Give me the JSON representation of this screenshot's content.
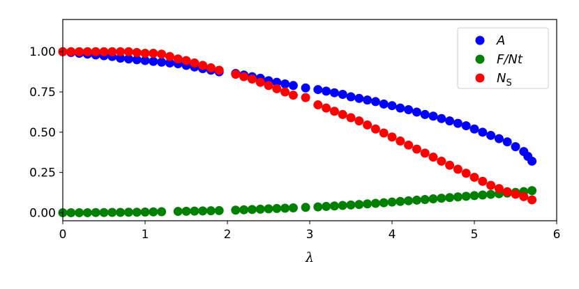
{
  "chart_data": {
    "type": "scatter",
    "title": "",
    "xlabel": "λ",
    "ylabel": "",
    "xlim": [
      0,
      6
    ],
    "ylim": [
      -0.05,
      1.2
    ],
    "xticks": [
      "0",
      "1",
      "2",
      "3",
      "4",
      "5",
      "6"
    ],
    "yticks": [
      "0.00",
      "0.25",
      "0.50",
      "0.75",
      "1.00"
    ],
    "grid": false,
    "legend_position": "top-right",
    "series": [
      {
        "name": "A",
        "label_main": "A",
        "label_sub": "",
        "color": "#0000ff",
        "x": [
          0.0,
          0.1,
          0.2,
          0.3,
          0.4,
          0.5,
          0.6,
          0.7,
          0.8,
          0.9,
          1.0,
          1.1,
          1.2,
          1.3,
          1.4,
          1.5,
          1.6,
          1.7,
          1.8,
          1.9,
          2.1,
          2.2,
          2.3,
          2.4,
          2.5,
          2.6,
          2.7,
          2.8,
          2.95,
          3.1,
          3.2,
          3.3,
          3.4,
          3.5,
          3.6,
          3.7,
          3.8,
          3.9,
          4.0,
          4.1,
          4.2,
          4.3,
          4.4,
          4.5,
          4.6,
          4.7,
          4.8,
          4.9,
          5.0,
          5.1,
          5.2,
          5.3,
          5.4,
          5.5,
          5.6,
          5.65,
          5.7
        ],
        "y": [
          1.0,
          0.995,
          0.99,
          0.985,
          0.98,
          0.975,
          0.97,
          0.96,
          0.955,
          0.95,
          0.945,
          0.94,
          0.935,
          0.93,
          0.925,
          0.915,
          0.905,
          0.895,
          0.885,
          0.875,
          0.865,
          0.855,
          0.845,
          0.835,
          0.82,
          0.81,
          0.8,
          0.79,
          0.775,
          0.765,
          0.755,
          0.745,
          0.735,
          0.72,
          0.71,
          0.7,
          0.69,
          0.675,
          0.665,
          0.65,
          0.64,
          0.625,
          0.61,
          0.6,
          0.585,
          0.57,
          0.555,
          0.54,
          0.52,
          0.5,
          0.48,
          0.46,
          0.44,
          0.41,
          0.38,
          0.35,
          0.32
        ]
      },
      {
        "name": "F/Nt",
        "label_main": "F/Nt",
        "label_sub": "",
        "color": "#008000",
        "x": [
          0.0,
          0.1,
          0.2,
          0.3,
          0.4,
          0.5,
          0.6,
          0.7,
          0.8,
          0.9,
          1.0,
          1.1,
          1.2,
          1.4,
          1.5,
          1.6,
          1.7,
          1.8,
          1.9,
          2.1,
          2.2,
          2.3,
          2.4,
          2.5,
          2.6,
          2.7,
          2.8,
          2.95,
          3.1,
          3.2,
          3.3,
          3.4,
          3.5,
          3.6,
          3.7,
          3.8,
          3.9,
          4.0,
          4.1,
          4.2,
          4.3,
          4.4,
          4.5,
          4.6,
          4.7,
          4.8,
          4.9,
          5.0,
          5.1,
          5.2,
          5.3,
          5.4,
          5.5,
          5.6,
          5.7
        ],
        "y": [
          0.0,
          0.0,
          0.0,
          0.0,
          0.001,
          0.001,
          0.002,
          0.002,
          0.003,
          0.003,
          0.004,
          0.005,
          0.006,
          0.008,
          0.009,
          0.01,
          0.011,
          0.012,
          0.013,
          0.016,
          0.018,
          0.02,
          0.022,
          0.024,
          0.026,
          0.028,
          0.03,
          0.033,
          0.036,
          0.039,
          0.042,
          0.045,
          0.048,
          0.051,
          0.055,
          0.058,
          0.062,
          0.066,
          0.07,
          0.074,
          0.078,
          0.082,
          0.086,
          0.09,
          0.094,
          0.098,
          0.102,
          0.106,
          0.11,
          0.114,
          0.118,
          0.122,
          0.126,
          0.131,
          0.137
        ]
      },
      {
        "name": "NS",
        "label_main": "N",
        "label_sub": "S",
        "color": "#ff0000",
        "x": [
          0.0,
          0.1,
          0.2,
          0.3,
          0.4,
          0.5,
          0.6,
          0.7,
          0.8,
          0.9,
          1.0,
          1.1,
          1.2,
          1.3,
          1.4,
          1.5,
          1.6,
          1.7,
          1.8,
          1.9,
          2.1,
          2.2,
          2.3,
          2.4,
          2.5,
          2.6,
          2.7,
          2.8,
          2.95,
          3.1,
          3.2,
          3.3,
          3.4,
          3.5,
          3.6,
          3.7,
          3.8,
          3.9,
          4.0,
          4.1,
          4.2,
          4.3,
          4.4,
          4.5,
          4.6,
          4.7,
          4.8,
          4.9,
          5.0,
          5.1,
          5.2,
          5.3,
          5.4,
          5.5,
          5.6,
          5.7
        ],
        "y": [
          1.0,
          1.0,
          1.0,
          1.0,
          1.0,
          1.0,
          1.0,
          1.0,
          1.0,
          0.995,
          0.99,
          0.99,
          0.985,
          0.97,
          0.955,
          0.945,
          0.93,
          0.915,
          0.9,
          0.885,
          0.86,
          0.845,
          0.83,
          0.81,
          0.79,
          0.77,
          0.75,
          0.73,
          0.715,
          0.67,
          0.65,
          0.63,
          0.61,
          0.59,
          0.57,
          0.545,
          0.52,
          0.495,
          0.47,
          0.445,
          0.42,
          0.395,
          0.37,
          0.345,
          0.32,
          0.295,
          0.27,
          0.245,
          0.22,
          0.195,
          0.17,
          0.15,
          0.13,
          0.115,
          0.1,
          0.08
        ]
      }
    ]
  }
}
